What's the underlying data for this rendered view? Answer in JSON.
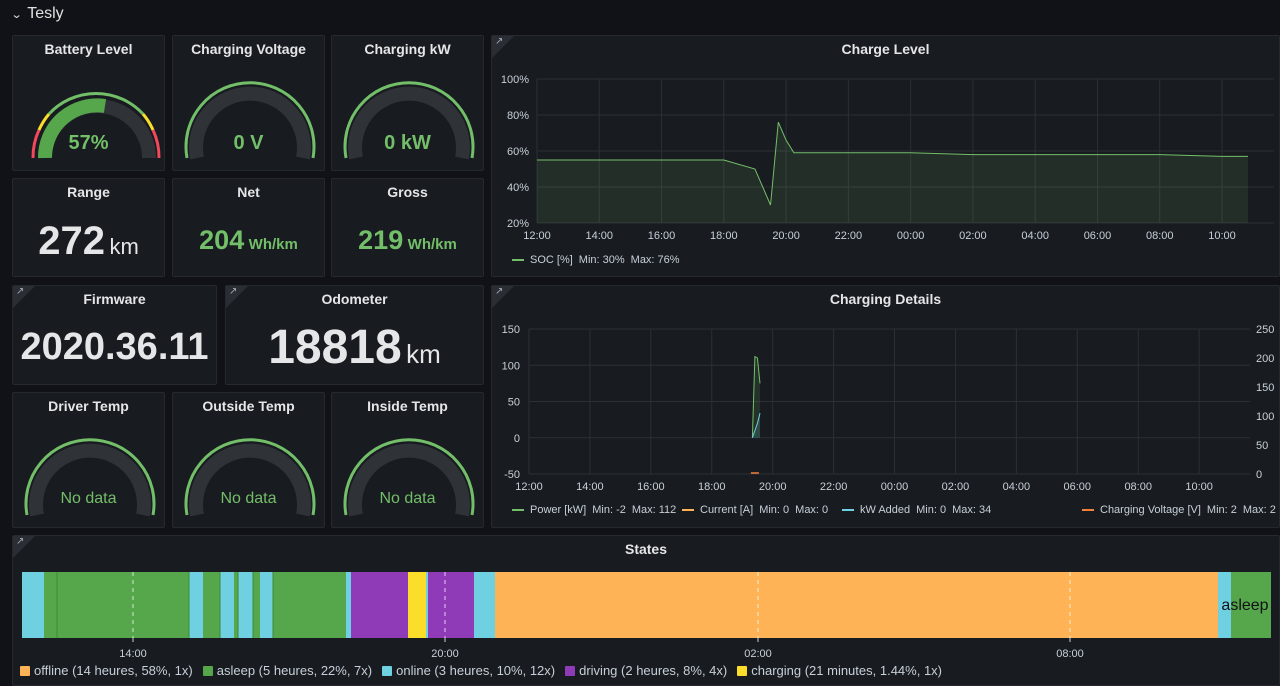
{
  "row": {
    "title": "Tesly",
    "chevron_icon": "chevron-down-icon"
  },
  "colors": {
    "green": "#73bf69",
    "orange": "#ffb357",
    "blue": "#6ed0e0",
    "purple": "#8f3bb8",
    "yellow": "#fade2a",
    "darkgreen": "#56a64b",
    "red": "#f2495c"
  },
  "battery": {
    "title": "Battery Level",
    "value": "57%",
    "level": 0.57
  },
  "charging_voltage": {
    "title": "Charging Voltage",
    "value": "0 V"
  },
  "charging_kw": {
    "title": "Charging kW",
    "value": "0 kW"
  },
  "range": {
    "title": "Range",
    "value": "272",
    "unit": "km"
  },
  "net": {
    "title": "Net",
    "value": "204",
    "unit": "Wh/km"
  },
  "gross": {
    "title": "Gross",
    "value": "219",
    "unit": "Wh/km"
  },
  "firmware": {
    "title": "Firmware",
    "value": "2020.36.11"
  },
  "odometer": {
    "title": "Odometer",
    "value": "18818",
    "unit": "km"
  },
  "driver_temp": {
    "title": "Driver Temp",
    "value": "No data"
  },
  "outside_temp": {
    "title": "Outside Temp",
    "value": "No data"
  },
  "inside_temp": {
    "title": "Inside Temp",
    "value": "No data"
  },
  "charge_level": {
    "title": "Charge Level",
    "legend": {
      "name": "SOC [%]",
      "min": "Min: 30%",
      "max": "Max: 76%"
    }
  },
  "charging_details": {
    "title": "Charging Details",
    "legend": [
      {
        "name": "Power [kW]",
        "min": "Min: -2",
        "max": "Max: 112",
        "color": "#73bf69"
      },
      {
        "name": "Current [A]",
        "min": "Min: 0",
        "max": "Max: 0",
        "color": "#ffb357"
      },
      {
        "name": "kW Added",
        "min": "Min: 0",
        "max": "Max: 34",
        "color": "#6ed0e0"
      },
      {
        "name": "Charging Voltage [V]",
        "min": "Min: 2",
        "max": "Max: 2",
        "color": "#f2803a"
      }
    ]
  },
  "states": {
    "title": "States",
    "bar_label": "asleep",
    "ticks": [
      "14:00",
      "20:00",
      "02:00",
      "08:00"
    ],
    "legend": [
      {
        "label": "offline (14 heures, 58%, 1x)",
        "color": "#ffb357"
      },
      {
        "label": "asleep (5 heures, 22%, 7x)",
        "color": "#56a64b"
      },
      {
        "label": "online (3 heures, 10%, 12x)",
        "color": "#6ed0e0"
      },
      {
        "label": "driving (2 heures, 8%, 4x)",
        "color": "#8f3bb8"
      },
      {
        "label": "charging (21 minutes, 1.44%, 1x)",
        "color": "#fade2a"
      }
    ]
  },
  "chart_data": [
    {
      "type": "line",
      "title": "Charge Level",
      "x": [
        "12:00",
        "14:00",
        "16:00",
        "18:00",
        "19:00",
        "19:30",
        "19:45",
        "20:00",
        "20:15",
        "22:00",
        "00:00",
        "02:00",
        "04:00",
        "06:00",
        "08:00",
        "10:00",
        "10:50"
      ],
      "series": [
        {
          "name": "SOC [%]",
          "values": [
            55,
            55,
            55,
            55,
            50,
            30,
            76,
            66,
            59,
            59,
            59,
            58,
            58,
            58,
            58,
            57,
            57
          ]
        }
      ],
      "x_ticks": [
        "12:00",
        "14:00",
        "16:00",
        "18:00",
        "20:00",
        "22:00",
        "00:00",
        "02:00",
        "04:00",
        "06:00",
        "08:00",
        "10:00"
      ],
      "y_ticks": [
        "20%",
        "40%",
        "60%",
        "80%",
        "100%"
      ],
      "ylim": [
        20,
        100
      ]
    },
    {
      "type": "line",
      "title": "Charging Details",
      "x": [
        "19:20",
        "19:25",
        "19:30",
        "19:35"
      ],
      "series": [
        {
          "name": "Power [kW]",
          "values": [
            0,
            112,
            110,
            75
          ]
        },
        {
          "name": "kW Added",
          "values": [
            0,
            10,
            20,
            34
          ]
        }
      ],
      "x_ticks": [
        "12:00",
        "14:00",
        "16:00",
        "18:00",
        "20:00",
        "22:00",
        "00:00",
        "02:00",
        "04:00",
        "06:00",
        "08:00",
        "10:00"
      ],
      "y_ticks_left": [
        "-50",
        "0",
        "50",
        "100",
        "150"
      ],
      "y_ticks_right": [
        "0",
        "50",
        "100",
        "150",
        "200",
        "250"
      ],
      "ylim": [
        -50,
        150
      ]
    }
  ]
}
